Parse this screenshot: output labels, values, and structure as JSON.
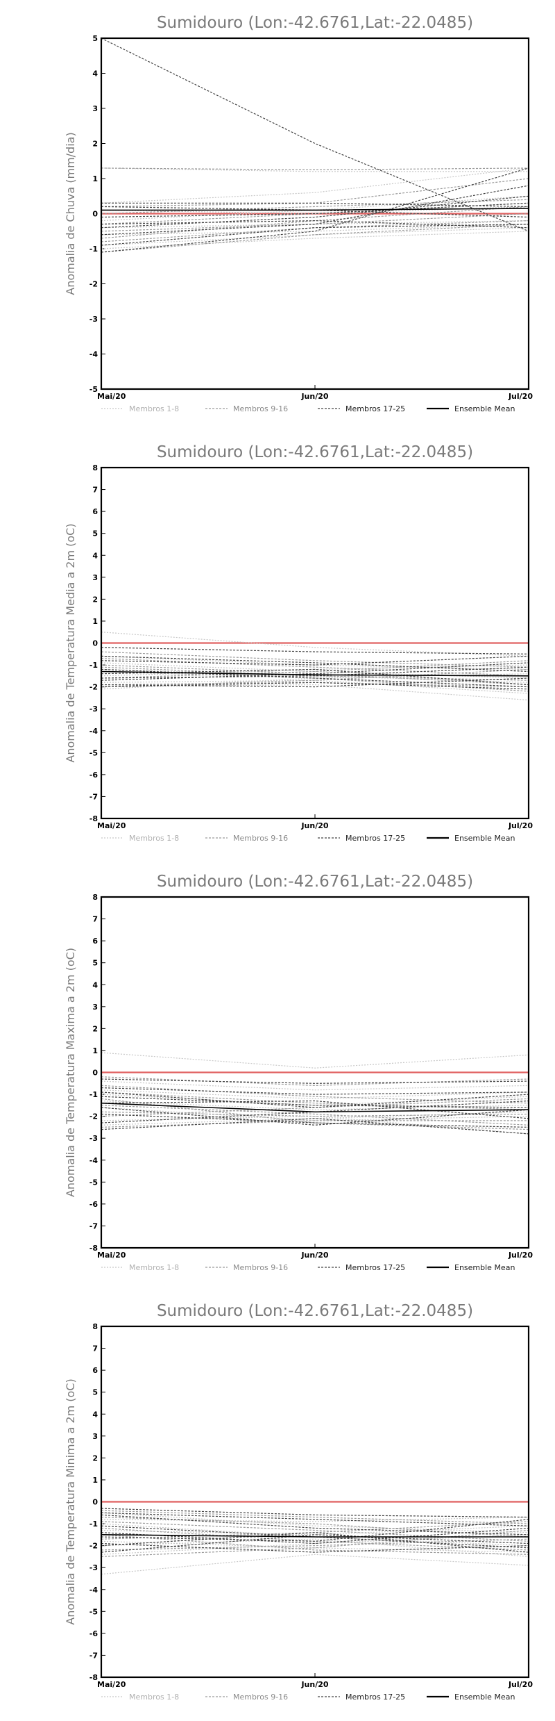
{
  "colors": {
    "frame": "#000000",
    "zero_line": "#e06060",
    "members_1_8": "#c8c8c8",
    "members_9_16": "#9a9a9a",
    "members_17_25": "#444444",
    "ensemble_mean": "#000000",
    "title": "#7a7a7a"
  },
  "legend": {
    "m1": "Membros 1-8",
    "m2": "Membros 9-16",
    "m3": "Membros 17-25",
    "mean": "Ensemble Mean"
  },
  "chart_data": [
    {
      "type": "line",
      "title": "Sumidouro (Lon:-42.6761,Lat:-22.0485)",
      "ylabel": "Anomalia de Chuva (mm/dia)",
      "categories": [
        "Mai/20",
        "Jun/20",
        "Jul/20"
      ],
      "ylim": [
        -5,
        5
      ],
      "yticks": [
        "-5",
        "-4",
        "-3",
        "-2",
        "-1",
        "0",
        "1",
        "2",
        "3",
        "4",
        "5"
      ],
      "zero_line": 0,
      "series": [
        {
          "group": "m1",
          "values": [
            1.3,
            1.2,
            1.2
          ]
        },
        {
          "group": "m1",
          "values": [
            0.3,
            0.6,
            1.3
          ]
        },
        {
          "group": "m1",
          "values": [
            -0.2,
            0.1,
            0.5
          ]
        },
        {
          "group": "m1",
          "values": [
            -0.4,
            -0.3,
            -0.2
          ]
        },
        {
          "group": "m1",
          "values": [
            -0.6,
            -0.5,
            -0.3
          ]
        },
        {
          "group": "m1",
          "values": [
            -0.9,
            -0.6,
            -0.4
          ]
        },
        {
          "group": "m1",
          "values": [
            0.1,
            0.0,
            0.2
          ]
        },
        {
          "group": "m1",
          "values": [
            -1.0,
            -0.7,
            -0.5
          ]
        },
        {
          "group": "m2",
          "values": [
            1.3,
            1.25,
            1.3
          ]
        },
        {
          "group": "m2",
          "values": [
            0.2,
            0.3,
            1.0
          ]
        },
        {
          "group": "m2",
          "values": [
            -0.3,
            0.0,
            0.3
          ]
        },
        {
          "group": "m2",
          "values": [
            -0.8,
            -0.4,
            -0.2
          ]
        },
        {
          "group": "m2",
          "values": [
            -1.1,
            -0.6,
            -0.3
          ]
        },
        {
          "group": "m2",
          "values": [
            0.0,
            0.2,
            0.4
          ]
        },
        {
          "group": "m2",
          "values": [
            -0.5,
            -0.3,
            0.0
          ]
        },
        {
          "group": "m2",
          "values": [
            -0.7,
            -0.2,
            0.2
          ]
        },
        {
          "group": "m3",
          "values": [
            5.0,
            2.0,
            -0.5
          ]
        },
        {
          "group": "m3",
          "values": [
            0.3,
            0.3,
            0.2
          ]
        },
        {
          "group": "m3",
          "values": [
            -0.1,
            0.0,
            0.3
          ]
        },
        {
          "group": "m3",
          "values": [
            -0.4,
            -0.1,
            0.5
          ]
        },
        {
          "group": "m3",
          "values": [
            -0.6,
            -0.3,
            0.8
          ]
        },
        {
          "group": "m3",
          "values": [
            -0.9,
            -0.4,
            -0.3
          ]
        },
        {
          "group": "m3",
          "values": [
            -1.1,
            -0.5,
            1.3
          ]
        },
        {
          "group": "m3",
          "values": [
            0.2,
            0.1,
            -0.1
          ]
        },
        {
          "group": "m3",
          "values": [
            -0.3,
            -0.2,
            -0.4
          ]
        },
        {
          "group": "mean",
          "values": [
            0.1,
            0.1,
            0.15
          ]
        }
      ]
    },
    {
      "type": "line",
      "title": "Sumidouro (Lon:-42.6761,Lat:-22.0485)",
      "ylabel": "Anomalia de Temperatura Media a 2m (oC)",
      "categories": [
        "Mai/20",
        "Jun/20",
        "Jul/20"
      ],
      "ylim": [
        -8,
        8
      ],
      "yticks": [
        "-8",
        "-7",
        "-6",
        "-5",
        "-4",
        "-3",
        "-2",
        "-1",
        "0",
        "1",
        "2",
        "3",
        "4",
        "5",
        "6",
        "7",
        "8"
      ],
      "zero_line": 0,
      "series": [
        {
          "group": "m1",
          "values": [
            0.5,
            -0.2,
            -0.6
          ]
        },
        {
          "group": "m1",
          "values": [
            -0.6,
            -1.0,
            -1.2
          ]
        },
        {
          "group": "m1",
          "values": [
            -1.2,
            -1.5,
            -1.8
          ]
        },
        {
          "group": "m1",
          "values": [
            -1.8,
            -1.7,
            -2.3
          ]
        },
        {
          "group": "m1",
          "values": [
            -2.0,
            -1.9,
            -2.6
          ]
        },
        {
          "group": "m1",
          "values": [
            -1.5,
            -1.2,
            -1.0
          ]
        },
        {
          "group": "m1",
          "values": [
            -0.9,
            -1.3,
            -1.6
          ]
        },
        {
          "group": "m1",
          "values": [
            -2.1,
            -1.6,
            -1.4
          ]
        },
        {
          "group": "m2",
          "values": [
            -0.4,
            -0.8,
            -1.1
          ]
        },
        {
          "group": "m2",
          "values": [
            -1.0,
            -1.4,
            -1.9
          ]
        },
        {
          "group": "m2",
          "values": [
            -1.6,
            -1.3,
            -0.8
          ]
        },
        {
          "group": "m2",
          "values": [
            -1.9,
            -1.8,
            -2.0
          ]
        },
        {
          "group": "m2",
          "values": [
            -1.3,
            -1.6,
            -2.2
          ]
        },
        {
          "group": "m2",
          "values": [
            -0.7,
            -1.1,
            -1.5
          ]
        },
        {
          "group": "m2",
          "values": [
            -2.0,
            -1.7,
            -1.2
          ]
        },
        {
          "group": "m2",
          "values": [
            -1.1,
            -1.5,
            -1.7
          ]
        },
        {
          "group": "m3",
          "values": [
            -0.2,
            -0.4,
            -0.5
          ]
        },
        {
          "group": "m3",
          "values": [
            -0.8,
            -1.0,
            -0.6
          ]
        },
        {
          "group": "m3",
          "values": [
            -1.2,
            -1.6,
            -2.0
          ]
        },
        {
          "group": "m3",
          "values": [
            -1.6,
            -1.5,
            -1.1
          ]
        },
        {
          "group": "m3",
          "values": [
            -1.9,
            -2.0,
            -1.6
          ]
        },
        {
          "group": "m3",
          "values": [
            -1.4,
            -1.2,
            -1.9
          ]
        },
        {
          "group": "m3",
          "values": [
            -2.0,
            -1.8,
            -2.1
          ]
        },
        {
          "group": "m3",
          "values": [
            -0.6,
            -0.9,
            -1.3
          ]
        },
        {
          "group": "m3",
          "values": [
            -1.7,
            -1.4,
            -0.9
          ]
        },
        {
          "group": "mean",
          "values": [
            -1.3,
            -1.45,
            -1.5
          ]
        }
      ]
    },
    {
      "type": "line",
      "title": "Sumidouro (Lon:-42.6761,Lat:-22.0485)",
      "ylabel": "Anomalia de Temperatura Maxima a 2m (oC)",
      "categories": [
        "Mai/20",
        "Jun/20",
        "Jul/20"
      ],
      "ylim": [
        -8,
        8
      ],
      "yticks": [
        "-8",
        "-7",
        "-6",
        "-5",
        "-4",
        "-3",
        "-2",
        "-1",
        "0",
        "1",
        "2",
        "3",
        "4",
        "5",
        "6",
        "7",
        "8"
      ],
      "zero_line": 0,
      "series": [
        {
          "group": "m1",
          "values": [
            0.9,
            0.2,
            0.8
          ]
        },
        {
          "group": "m1",
          "values": [
            -0.4,
            -0.8,
            -0.6
          ]
        },
        {
          "group": "m1",
          "values": [
            -1.0,
            -1.5,
            -1.1
          ]
        },
        {
          "group": "m1",
          "values": [
            -1.6,
            -2.2,
            -2.0
          ]
        },
        {
          "group": "m1",
          "values": [
            -2.2,
            -2.0,
            -2.8
          ]
        },
        {
          "group": "m1",
          "values": [
            -1.3,
            -1.7,
            -1.5
          ]
        },
        {
          "group": "m1",
          "values": [
            -0.8,
            -1.2,
            -0.9
          ]
        },
        {
          "group": "m1",
          "values": [
            -2.4,
            -2.1,
            -1.8
          ]
        },
        {
          "group": "m2",
          "values": [
            -0.2,
            -0.6,
            -0.3
          ]
        },
        {
          "group": "m2",
          "values": [
            -0.9,
            -1.4,
            -1.7
          ]
        },
        {
          "group": "m2",
          "values": [
            -1.5,
            -1.9,
            -2.4
          ]
        },
        {
          "group": "m2",
          "values": [
            -2.0,
            -1.6,
            -1.2
          ]
        },
        {
          "group": "m2",
          "values": [
            -1.2,
            -2.3,
            -2.6
          ]
        },
        {
          "group": "m2",
          "values": [
            -0.6,
            -1.1,
            -1.4
          ]
        },
        {
          "group": "m2",
          "values": [
            -1.8,
            -2.0,
            -1.9
          ]
        },
        {
          "group": "m2",
          "values": [
            -2.5,
            -2.2,
            -2.2
          ]
        },
        {
          "group": "m3",
          "values": [
            -0.3,
            -0.5,
            -0.4
          ]
        },
        {
          "group": "m3",
          "values": [
            -0.7,
            -1.0,
            -0.9
          ]
        },
        {
          "group": "m3",
          "values": [
            -1.1,
            -1.5,
            -1.6
          ]
        },
        {
          "group": "m3",
          "values": [
            -1.4,
            -1.3,
            -2.1
          ]
        },
        {
          "group": "m3",
          "values": [
            -1.9,
            -2.3,
            -2.5
          ]
        },
        {
          "group": "m3",
          "values": [
            -2.3,
            -1.8,
            -1.3
          ]
        },
        {
          "group": "m3",
          "values": [
            -2.6,
            -2.1,
            -2.8
          ]
        },
        {
          "group": "m3",
          "values": [
            -0.9,
            -1.6,
            -1.0
          ]
        },
        {
          "group": "m3",
          "values": [
            -1.6,
            -2.4,
            -1.7
          ]
        },
        {
          "group": "mean",
          "values": [
            -1.4,
            -1.8,
            -1.7
          ]
        }
      ]
    },
    {
      "type": "line",
      "title": "Sumidouro (Lon:-42.6761,Lat:-22.0485)",
      "ylabel": "Anomalia de Temperatura Minima a 2m (oC)",
      "categories": [
        "Mai/20",
        "Jun/20",
        "Jul/20"
      ],
      "ylim": [
        -8,
        8
      ],
      "yticks": [
        "-8",
        "-7",
        "-6",
        "-5",
        "-4",
        "-3",
        "-2",
        "-1",
        "0",
        "1",
        "2",
        "3",
        "4",
        "5",
        "6",
        "7",
        "8"
      ],
      "zero_line": 0,
      "series": [
        {
          "group": "m1",
          "values": [
            -0.5,
            -1.1,
            -1.4
          ]
        },
        {
          "group": "m1",
          "values": [
            -1.0,
            -1.6,
            -2.0
          ]
        },
        {
          "group": "m1",
          "values": [
            -3.3,
            -2.4,
            -2.9
          ]
        },
        {
          "group": "m1",
          "values": [
            -1.8,
            -2.1,
            -2.3
          ]
        },
        {
          "group": "m1",
          "values": [
            -2.4,
            -1.9,
            -1.5
          ]
        },
        {
          "group": "m1",
          "values": [
            -1.3,
            -1.5,
            -1.1
          ]
        },
        {
          "group": "m1",
          "values": [
            -0.8,
            -0.9,
            -0.7
          ]
        },
        {
          "group": "m1",
          "values": [
            -2.0,
            -1.7,
            -2.5
          ]
        },
        {
          "group": "m2",
          "values": [
            -0.4,
            -0.7,
            -1.0
          ]
        },
        {
          "group": "m2",
          "values": [
            -1.2,
            -1.8,
            -2.2
          ]
        },
        {
          "group": "m2",
          "values": [
            -1.7,
            -1.4,
            -0.9
          ]
        },
        {
          "group": "m2",
          "values": [
            -2.2,
            -2.0,
            -1.7
          ]
        },
        {
          "group": "m2",
          "values": [
            -0.9,
            -1.3,
            -1.8
          ]
        },
        {
          "group": "m2",
          "values": [
            -1.5,
            -2.2,
            -2.4
          ]
        },
        {
          "group": "m2",
          "values": [
            -2.5,
            -2.1,
            -1.3
          ]
        },
        {
          "group": "m2",
          "values": [
            -0.7,
            -1.0,
            -1.6
          ]
        },
        {
          "group": "m3",
          "values": [
            -0.3,
            -0.6,
            -0.7
          ]
        },
        {
          "group": "m3",
          "values": [
            -0.6,
            -1.2,
            -1.5
          ]
        },
        {
          "group": "m3",
          "values": [
            -1.1,
            -1.6,
            -2.1
          ]
        },
        {
          "group": "m3",
          "values": [
            -1.4,
            -1.9,
            -1.2
          ]
        },
        {
          "group": "m3",
          "values": [
            -1.9,
            -2.3,
            -2.0
          ]
        },
        {
          "group": "m3",
          "values": [
            -2.3,
            -1.5,
            -1.9
          ]
        },
        {
          "group": "m3",
          "values": [
            -0.5,
            -0.8,
            -1.1
          ]
        },
        {
          "group": "m3",
          "values": [
            -1.6,
            -1.8,
            -0.8
          ]
        },
        {
          "group": "m3",
          "values": [
            -2.0,
            -1.4,
            -2.3
          ]
        },
        {
          "group": "mean",
          "values": [
            -1.5,
            -1.6,
            -1.6
          ]
        }
      ]
    }
  ]
}
